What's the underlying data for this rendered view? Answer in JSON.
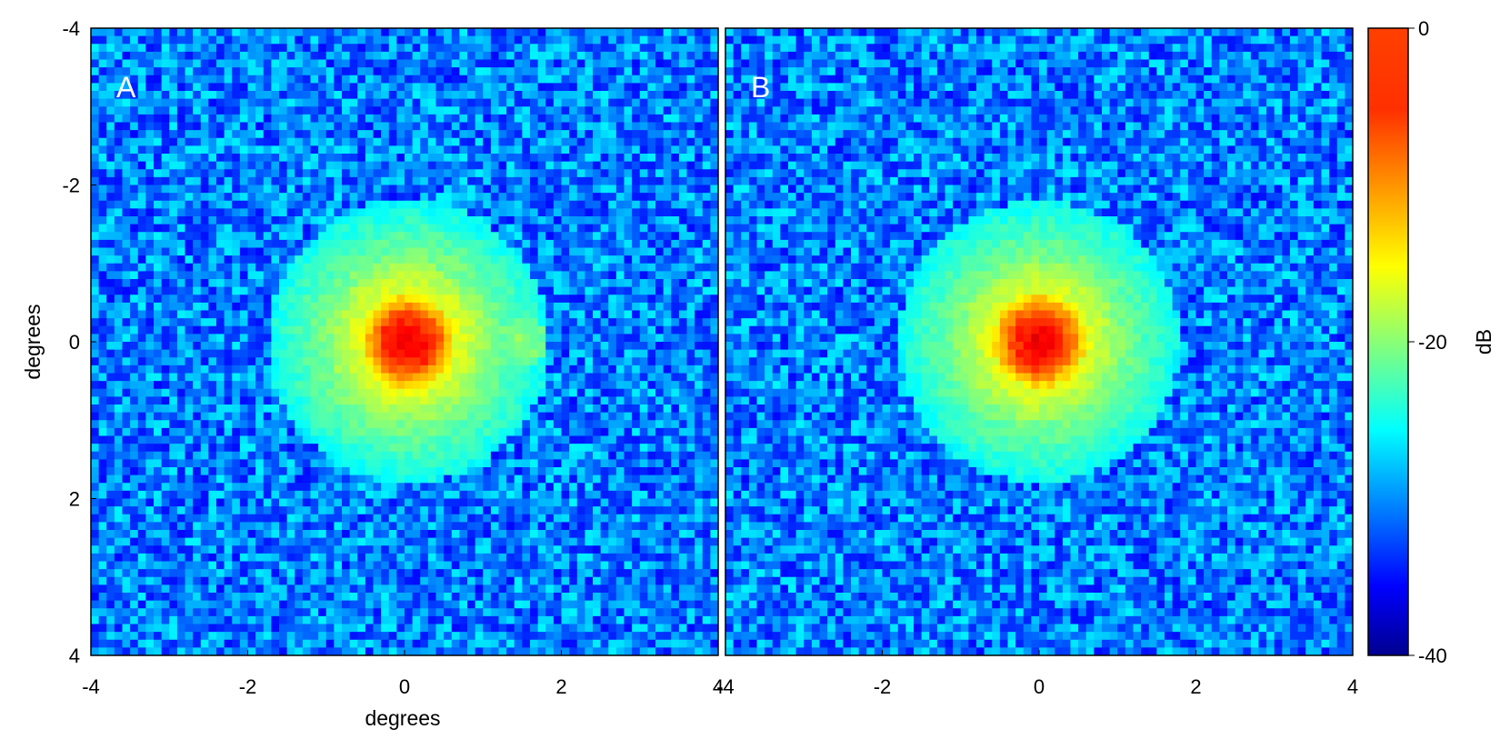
{
  "chart_data": {
    "type": "heatmap",
    "panels": [
      {
        "label": "A",
        "x_range": [
          -4,
          4
        ],
        "y_range": [
          -4,
          4
        ],
        "x_ticks": [
          "-4",
          "-2",
          "0",
          "2",
          "4"
        ],
        "y_ticks": [
          "-4",
          "-2",
          "0",
          "2",
          "4"
        ],
        "xlabel": "degrees",
        "ylabel": "degrees",
        "y_axis_reversed": true,
        "main_peak": {
          "x": 0.05,
          "y": 0.0,
          "value_db": 0
        },
        "side_lobe": {
          "x": 1.5,
          "y": 0.0,
          "value_db": -20
        },
        "noise_floor_db": [
          -40,
          -28
        ]
      },
      {
        "label": "B",
        "x_range": [
          -4,
          4
        ],
        "y_range": [
          -4,
          4
        ],
        "x_ticks": [
          "-4",
          "-2",
          "0",
          "2",
          "4"
        ],
        "xlabel": "",
        "ylabel": "",
        "y_axis_reversed": true,
        "main_peak": {
          "x": 0.0,
          "y": 0.0,
          "value_db": 0
        },
        "noise_floor_db": [
          -40,
          -28
        ]
      }
    ],
    "colorbar": {
      "label": "dB",
      "range": [
        -40,
        0
      ],
      "ticks": [
        "0",
        "-20",
        "-40"
      ],
      "colormap": "jet"
    }
  }
}
